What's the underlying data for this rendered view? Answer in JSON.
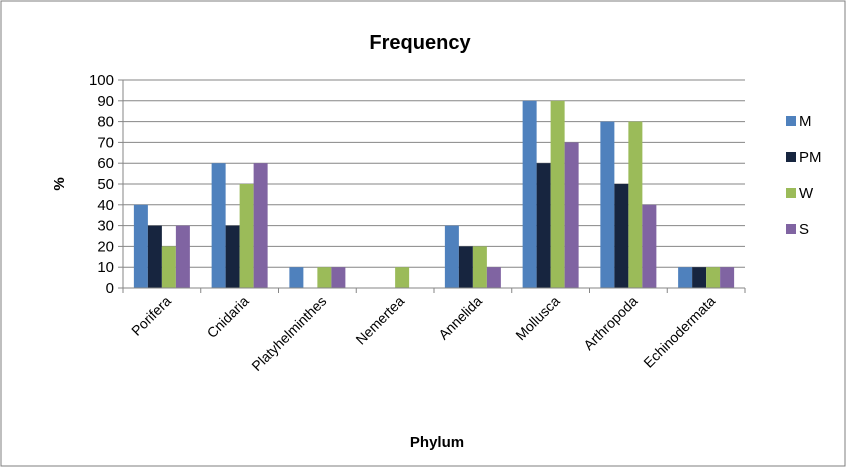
{
  "chart_data": {
    "type": "bar",
    "title": "Frequency",
    "xlabel": "Phylum",
    "ylabel": "%",
    "categories": [
      "Porifera",
      "Cnidaria",
      "Platyhelminthes",
      "Nemertea",
      "Annelida",
      "Mollusca",
      "Arthropoda",
      "Echinodermata"
    ],
    "series": [
      {
        "name": "M",
        "color": "#4F81BD",
        "values": [
          40,
          60,
          10,
          0,
          30,
          90,
          80,
          10
        ]
      },
      {
        "name": "PM",
        "color": "#17253F",
        "values": [
          30,
          30,
          0,
          0,
          20,
          60,
          50,
          10
        ]
      },
      {
        "name": "W",
        "color": "#9BBB59",
        "values": [
          20,
          50,
          10,
          10,
          20,
          90,
          80,
          10
        ]
      },
      {
        "name": "S",
        "color": "#8064A2",
        "values": [
          30,
          60,
          10,
          0,
          10,
          70,
          40,
          10
        ]
      }
    ],
    "ylim": [
      0,
      100
    ],
    "yticks": [
      0,
      10,
      20,
      30,
      40,
      50,
      60,
      70,
      80,
      90,
      100
    ],
    "grid": true,
    "legend_position": "right"
  }
}
